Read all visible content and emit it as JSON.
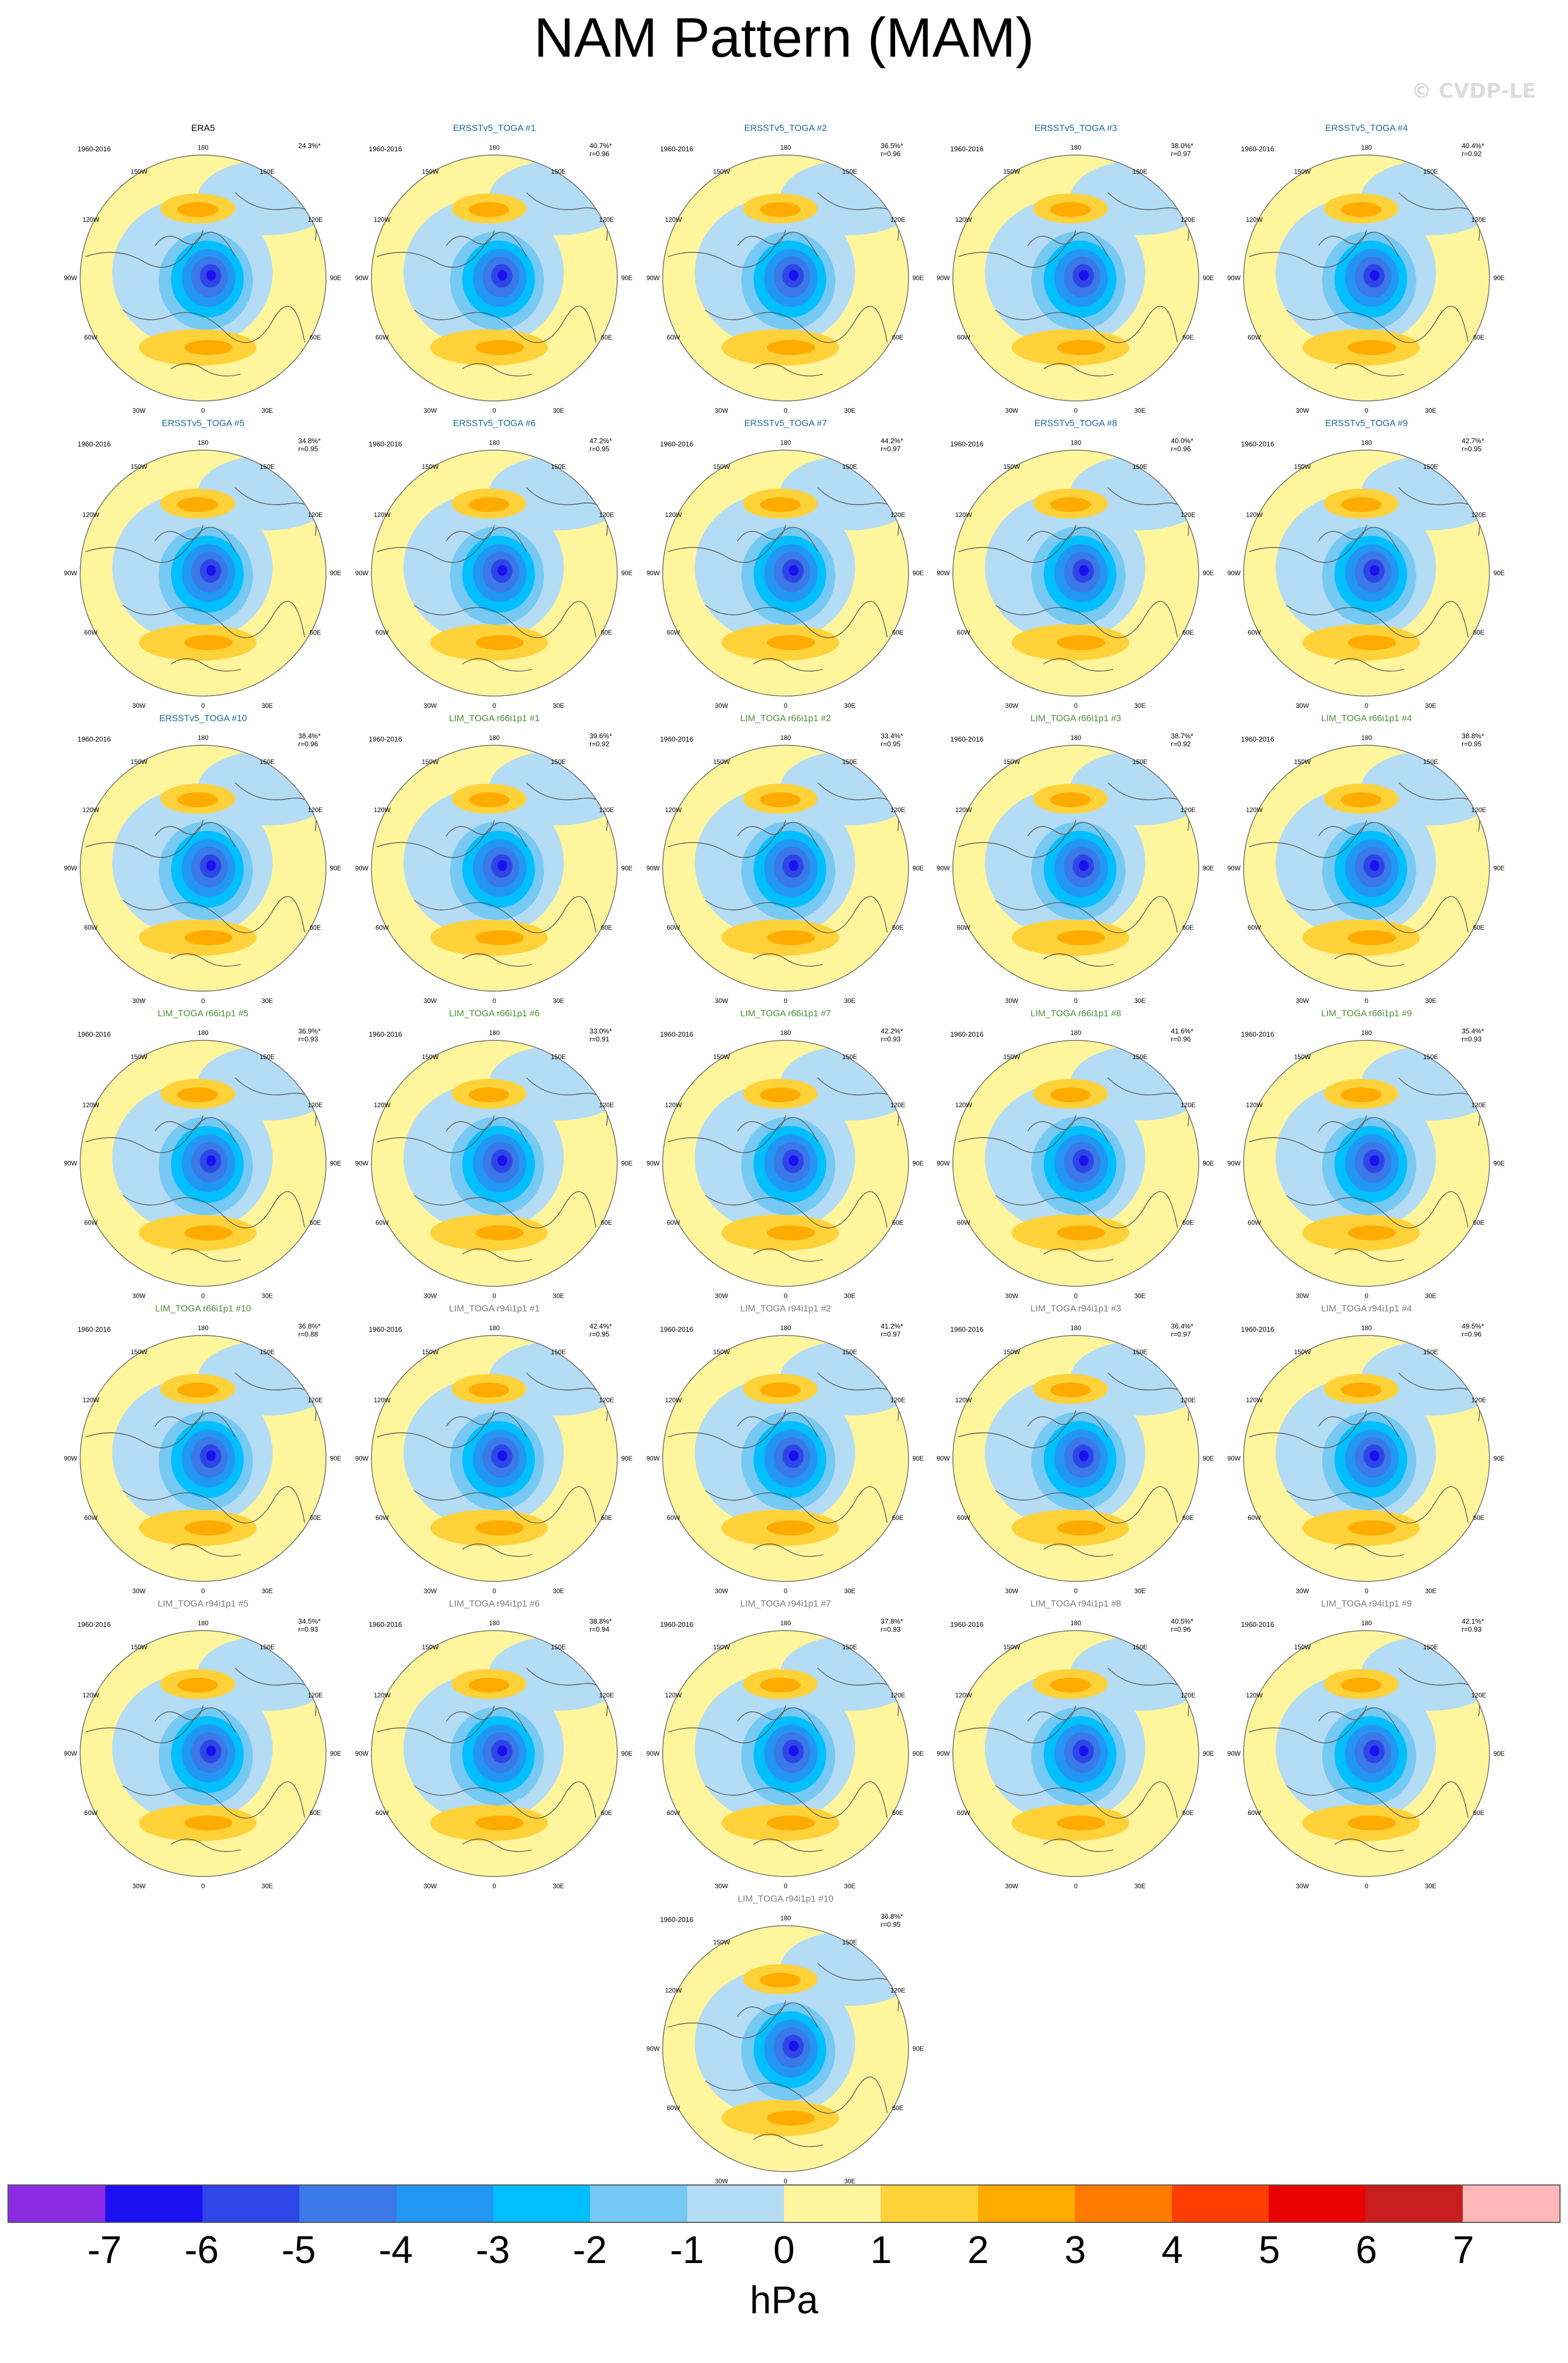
{
  "title": "NAM Pattern (MAM)",
  "watermark": "© CVDP-LE",
  "period": "1960-2016",
  "lon_labels": [
    "180",
    "150W",
    "150E",
    "120W",
    "120E",
    "90W",
    "90E",
    "60W",
    "60E",
    "30W",
    "30E",
    "0"
  ],
  "title_colors": {
    "obs": "#000000",
    "ersst": "#1b6d8f",
    "lim66": "#4e8f3a",
    "lim94": "#7d7d7d"
  },
  "panels": [
    {
      "name": "ERA5",
      "group": "obs",
      "pct": "24.3%*",
      "r": ""
    },
    {
      "name": "ERSSTv5_TOGA #1",
      "group": "ersst",
      "pct": "40.7%*",
      "r": "r=0.96"
    },
    {
      "name": "ERSSTv5_TOGA #2",
      "group": "ersst",
      "pct": "36.5%*",
      "r": "r=0.96"
    },
    {
      "name": "ERSSTv5_TOGA #3",
      "group": "ersst",
      "pct": "38.0%*",
      "r": "r=0.97"
    },
    {
      "name": "ERSSTv5_TOGA #4",
      "group": "ersst",
      "pct": "40.4%*",
      "r": "r=0.92"
    },
    {
      "name": "ERSSTv5_TOGA #5",
      "group": "ersst",
      "pct": "34.8%*",
      "r": "r=0.95"
    },
    {
      "name": "ERSSTv5_TOGA #6",
      "group": "ersst",
      "pct": "47.2%*",
      "r": "r=0.95"
    },
    {
      "name": "ERSSTv5_TOGA #7",
      "group": "ersst",
      "pct": "44.2%*",
      "r": "r=0.97"
    },
    {
      "name": "ERSSTv5_TOGA #8",
      "group": "ersst",
      "pct": "40.0%*",
      "r": "r=0.96"
    },
    {
      "name": "ERSSTv5_TOGA #9",
      "group": "ersst",
      "pct": "42.7%*",
      "r": "r=0.95"
    },
    {
      "name": "ERSSTv5_TOGA #10",
      "group": "ersst",
      "pct": "38.4%*",
      "r": "r=0.96"
    },
    {
      "name": "LIM_TOGA r66i1p1 #1",
      "group": "lim66",
      "pct": "39.6%*",
      "r": "r=0.92"
    },
    {
      "name": "LIM_TOGA r66i1p1 #2",
      "group": "lim66",
      "pct": "33.4%*",
      "r": "r=0.95"
    },
    {
      "name": "LIM_TOGA r66i1p1 #3",
      "group": "lim66",
      "pct": "38.7%*",
      "r": "r=0.92"
    },
    {
      "name": "LIM_TOGA r66i1p1 #4",
      "group": "lim66",
      "pct": "38.8%*",
      "r": "r=0.95"
    },
    {
      "name": "LIM_TOGA r66i1p1 #5",
      "group": "lim66",
      "pct": "36.9%*",
      "r": "r=0.93"
    },
    {
      "name": "LIM_TOGA r66i1p1 #6",
      "group": "lim66",
      "pct": "33.0%*",
      "r": "r=0.91"
    },
    {
      "name": "LIM_TOGA r66i1p1 #7",
      "group": "lim66",
      "pct": "42.2%*",
      "r": "r=0.93"
    },
    {
      "name": "LIM_TOGA r66i1p1 #8",
      "group": "lim66",
      "pct": "41.6%*",
      "r": "r=0.96"
    },
    {
      "name": "LIM_TOGA r66i1p1 #9",
      "group": "lim66",
      "pct": "35.4%*",
      "r": "r=0.93"
    },
    {
      "name": "LIM_TOGA r66i1p1 #10",
      "group": "lim66",
      "pct": "36.8%*",
      "r": "r=0.88"
    },
    {
      "name": "LIM_TOGA r94i1p1 #1",
      "group": "lim94",
      "pct": "42.4%*",
      "r": "r=0.95"
    },
    {
      "name": "LIM_TOGA r94i1p1 #2",
      "group": "lim94",
      "pct": "41.2%*",
      "r": "r=0.97"
    },
    {
      "name": "LIM_TOGA r94i1p1 #3",
      "group": "lim94",
      "pct": "36.4%*",
      "r": "r=0.97"
    },
    {
      "name": "LIM_TOGA r94i1p1 #4",
      "group": "lim94",
      "pct": "49.5%*",
      "r": "r=0.96"
    },
    {
      "name": "LIM_TOGA r94i1p1 #5",
      "group": "lim94",
      "pct": "34.5%*",
      "r": "r=0.93"
    },
    {
      "name": "LIM_TOGA r94i1p1 #6",
      "group": "lim94",
      "pct": "38.8%*",
      "r": "r=0.94"
    },
    {
      "name": "LIM_TOGA r94i1p1 #7",
      "group": "lim94",
      "pct": "37.8%*",
      "r": "r=0.93"
    },
    {
      "name": "LIM_TOGA r94i1p1 #8",
      "group": "lim94",
      "pct": "40.5%*",
      "r": "r=0.96"
    },
    {
      "name": "LIM_TOGA r94i1p1 #9",
      "group": "lim94",
      "pct": "42.1%*",
      "r": "r=0.93"
    },
    {
      "name": "LIM_TOGA r94i1p1 #10",
      "group": "lim94",
      "pct": "36.8%*",
      "r": "r=0.95"
    }
  ],
  "colorbar": {
    "units": "hPa",
    "colors": [
      "#8a2be2",
      "#1a10f0",
      "#2e46e6",
      "#3b78e8",
      "#2196f3",
      "#00bfff",
      "#76c9f2",
      "#b4dcf4",
      "#fff59d",
      "#ffd23a",
      "#ffab00",
      "#ff7a00",
      "#ff3d00",
      "#e80000",
      "#c81e1e",
      "#ffb6b6"
    ],
    "ticks": [
      "-7",
      "-6",
      "-5",
      "-4",
      "-3",
      "-2",
      "-1",
      "0",
      "1",
      "2",
      "3",
      "4",
      "5",
      "6",
      "7"
    ]
  }
}
